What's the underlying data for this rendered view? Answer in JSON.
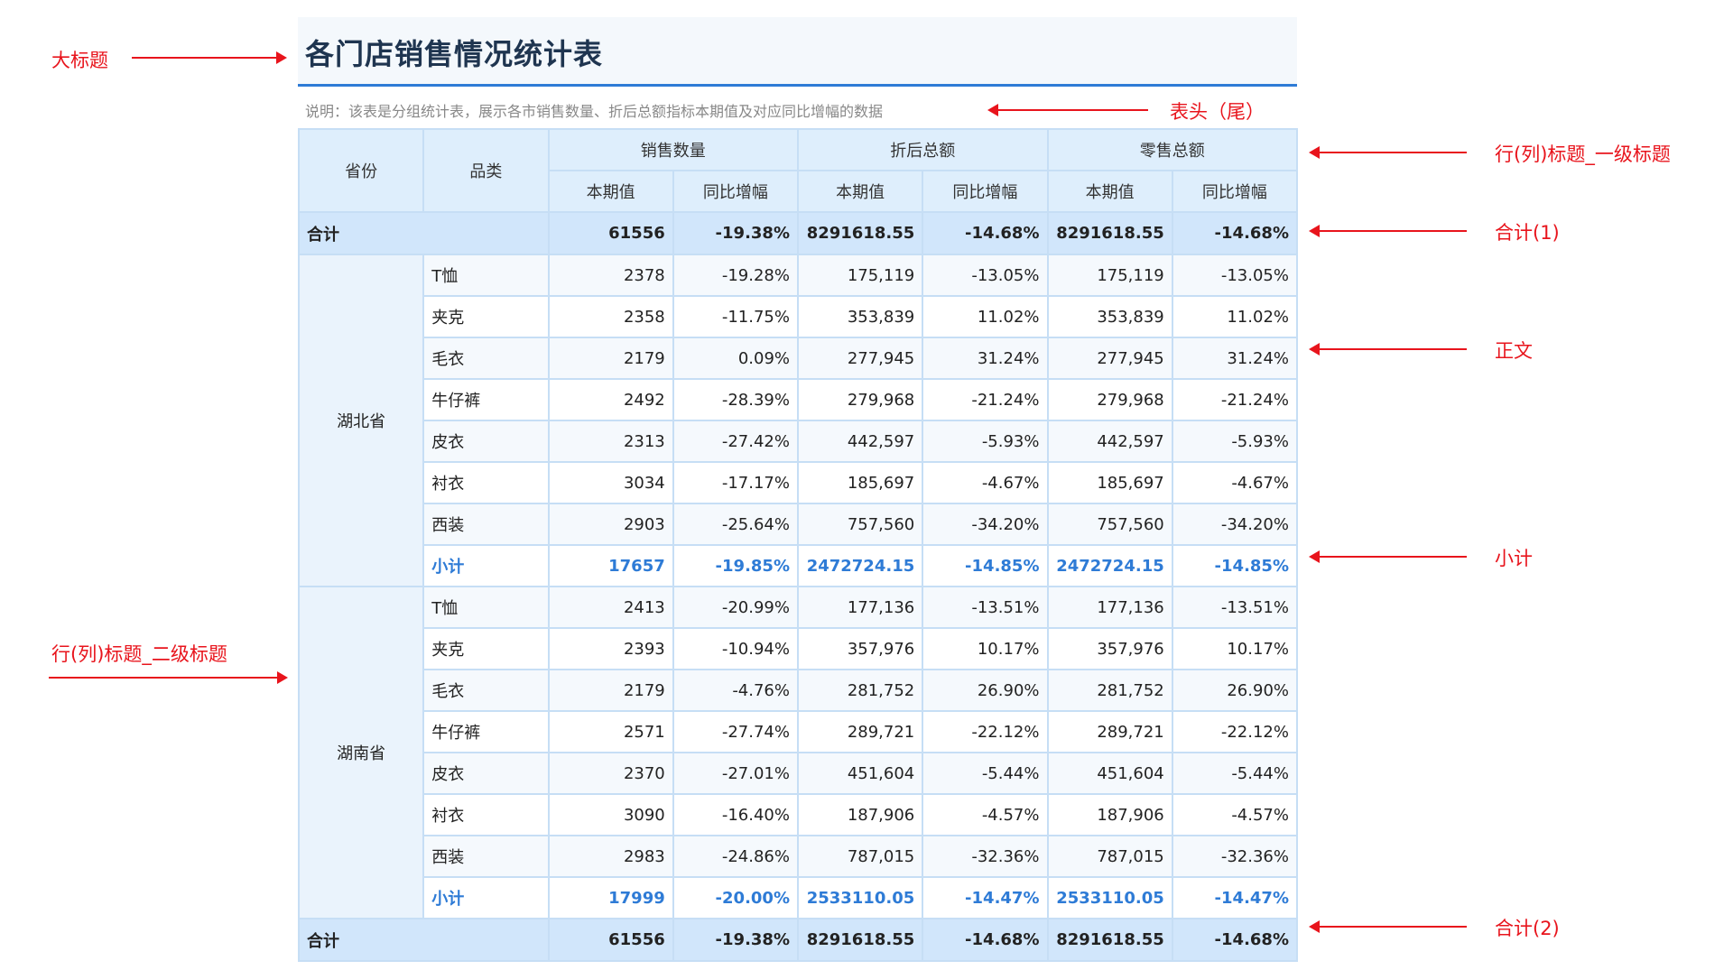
{
  "title": "各门店销售情况统计表",
  "note": "说明：该表是分组统计表，展示各市销售数量、折后总额指标本期值及对应同比增幅的数据",
  "header": {
    "province": "省份",
    "category": "品类",
    "groups": [
      "销售数量",
      "折后总额",
      "零售总额"
    ],
    "sub": [
      "本期值",
      "同比增幅",
      "本期值",
      "同比增幅",
      "本期值",
      "同比增幅"
    ]
  },
  "total": {
    "label": "合计",
    "values": [
      "61556",
      "-19.38%",
      "8291618.55",
      "-14.68%",
      "8291618.55",
      "-14.68%"
    ]
  },
  "groups": [
    {
      "province": "湖北省",
      "rows": [
        {
          "cat": "T恤",
          "values": [
            "2378",
            "-19.28%",
            "175,119",
            "-13.05%",
            "175,119",
            "-13.05%"
          ]
        },
        {
          "cat": "夹克",
          "values": [
            "2358",
            "-11.75%",
            "353,839",
            "11.02%",
            "353,839",
            "11.02%"
          ]
        },
        {
          "cat": "毛衣",
          "values": [
            "2179",
            "0.09%",
            "277,945",
            "31.24%",
            "277,945",
            "31.24%"
          ]
        },
        {
          "cat": "牛仔裤",
          "values": [
            "2492",
            "-28.39%",
            "279,968",
            "-21.24%",
            "279,968",
            "-21.24%"
          ]
        },
        {
          "cat": "皮衣",
          "values": [
            "2313",
            "-27.42%",
            "442,597",
            "-5.93%",
            "442,597",
            "-5.93%"
          ]
        },
        {
          "cat": "衬衣",
          "values": [
            "3034",
            "-17.17%",
            "185,697",
            "-4.67%",
            "185,697",
            "-4.67%"
          ]
        },
        {
          "cat": "西装",
          "values": [
            "2903",
            "-25.64%",
            "757,560",
            "-34.20%",
            "757,560",
            "-34.20%"
          ]
        }
      ],
      "subtotal": {
        "label": "小计",
        "values": [
          "17657",
          "-19.85%",
          "2472724.15",
          "-14.85%",
          "2472724.15",
          "-14.85%"
        ]
      }
    },
    {
      "province": "湖南省",
      "rows": [
        {
          "cat": "T恤",
          "values": [
            "2413",
            "-20.99%",
            "177,136",
            "-13.51%",
            "177,136",
            "-13.51%"
          ]
        },
        {
          "cat": "夹克",
          "values": [
            "2393",
            "-10.94%",
            "357,976",
            "10.17%",
            "357,976",
            "10.17%"
          ]
        },
        {
          "cat": "毛衣",
          "values": [
            "2179",
            "-4.76%",
            "281,752",
            "26.90%",
            "281,752",
            "26.90%"
          ]
        },
        {
          "cat": "牛仔裤",
          "values": [
            "2571",
            "-27.74%",
            "289,721",
            "-22.12%",
            "289,721",
            "-22.12%"
          ]
        },
        {
          "cat": "皮衣",
          "values": [
            "2370",
            "-27.01%",
            "451,604",
            "-5.44%",
            "451,604",
            "-5.44%"
          ]
        },
        {
          "cat": "衬衣",
          "values": [
            "3090",
            "-16.40%",
            "187,906",
            "-4.57%",
            "187,906",
            "-4.57%"
          ]
        },
        {
          "cat": "西装",
          "values": [
            "2983",
            "-24.86%",
            "787,015",
            "-32.36%",
            "787,015",
            "-32.36%"
          ]
        }
      ],
      "subtotal": {
        "label": "小计",
        "values": [
          "17999",
          "-20.00%",
          "2533110.05",
          "-14.47%",
          "2533110.05",
          "-14.47%"
        ]
      }
    }
  ],
  "total2": {
    "label": "合计",
    "values": [
      "61556",
      "-19.38%",
      "8291618.55",
      "-14.68%",
      "8291618.55",
      "-14.68%"
    ]
  },
  "annotations": {
    "big_title": "大标题",
    "header_footer": "表头（尾）",
    "level1": "行(列)标题_一级标题",
    "total1": "合计(1)",
    "body": "正文",
    "subtotal": "小计",
    "level2": "行(列)标题_二级标题",
    "total2": "合计(2)"
  },
  "colors": {
    "accent": "#2e7bd6",
    "annotation": "#e8141c",
    "header_bg": "#deeefc",
    "total_bg": "#d1e6fb"
  }
}
